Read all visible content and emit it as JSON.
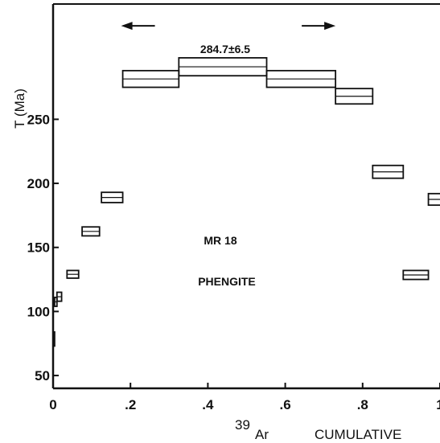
{
  "chart_data": {
    "type": "plateau-spectrum",
    "ylabel": "T (Ma)",
    "xlabel": {
      "isotope_mass": "39",
      "isotope_symbol": "Ar",
      "text": "CUMULATIVE"
    },
    "x_ticks": [
      {
        "value": 0,
        "label": "0"
      },
      {
        "value": 0.2,
        "label": ".2"
      },
      {
        "value": 0.4,
        "label": ".4"
      },
      {
        "value": 0.6,
        "label": ".6"
      },
      {
        "value": 0.8,
        "label": ".8"
      },
      {
        "value": 1.0,
        "label": "1"
      }
    ],
    "y_ticks": [
      {
        "value": 50,
        "label": "50"
      },
      {
        "value": 100,
        "label": "100"
      },
      {
        "value": 150,
        "label": "150"
      },
      {
        "value": 200,
        "label": "200"
      },
      {
        "value": 250,
        "label": "250"
      }
    ],
    "xlim": [
      0,
      1.0
    ],
    "ylim": [
      40,
      340
    ],
    "plateau_age": "284.7±6.5",
    "sample": "MR 18",
    "mineral": "PHENGITE",
    "steps": [
      {
        "x0": 0.0,
        "x1": 0.004,
        "ymin": 73,
        "ymax": 84
      },
      {
        "x0": 0.004,
        "x1": 0.01,
        "ymin": 104,
        "ymax": 111
      },
      {
        "x0": 0.01,
        "x1": 0.022,
        "ymin": 108,
        "ymax": 115
      },
      {
        "x0": 0.036,
        "x1": 0.066,
        "ymin": 126,
        "ymax": 132
      },
      {
        "x0": 0.075,
        "x1": 0.12,
        "ymin": 159,
        "ymax": 166
      },
      {
        "x0": 0.125,
        "x1": 0.18,
        "ymin": 185,
        "ymax": 193
      },
      {
        "x0": 0.18,
        "x1": 0.325,
        "ymin": 275,
        "ymax": 288
      },
      {
        "x0": 0.325,
        "x1": 0.552,
        "ymin": 284,
        "ymax": 298
      },
      {
        "x0": 0.552,
        "x1": 0.73,
        "ymin": 275,
        "ymax": 288
      },
      {
        "x0": 0.73,
        "x1": 0.826,
        "ymin": 262,
        "ymax": 274
      },
      {
        "x0": 0.826,
        "x1": 0.905,
        "ymin": 204,
        "ymax": 214
      },
      {
        "x0": 0.905,
        "x1": 0.97,
        "ymin": 125,
        "ymax": 132
      },
      {
        "x0": 0.97,
        "x1": 1.01,
        "ymin": 183,
        "ymax": 192
      }
    ],
    "plateau_arrow": {
      "from": 0.18,
      "to": 0.73,
      "y": 323
    },
    "grid": false
  }
}
